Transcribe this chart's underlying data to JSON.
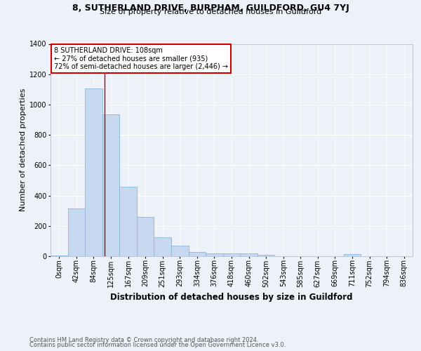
{
  "title": "8, SUTHERLAND DRIVE, BURPHAM, GUILDFORD, GU4 7YJ",
  "subtitle": "Size of property relative to detached houses in Guildford",
  "xlabel": "Distribution of detached houses by size in Guildford",
  "ylabel": "Number of detached properties",
  "footnote1": "Contains HM Land Registry data © Crown copyright and database right 2024.",
  "footnote2": "Contains public sector information licensed under the Open Government Licence v3.0.",
  "bar_labels": [
    "0sqm",
    "42sqm",
    "84sqm",
    "125sqm",
    "167sqm",
    "209sqm",
    "251sqm",
    "293sqm",
    "334sqm",
    "376sqm",
    "418sqm",
    "460sqm",
    "502sqm",
    "543sqm",
    "585sqm",
    "627sqm",
    "669sqm",
    "711sqm",
    "752sqm",
    "794sqm",
    "836sqm"
  ],
  "bar_values": [
    5,
    315,
    1105,
    935,
    460,
    260,
    125,
    70,
    30,
    20,
    20,
    20,
    10,
    0,
    0,
    0,
    0,
    15,
    0,
    0,
    0
  ],
  "bar_color": "#c6d9f0",
  "bar_edgecolor": "#8ab4d8",
  "ylim": [
    0,
    1400
  ],
  "yticks": [
    0,
    200,
    400,
    600,
    800,
    1000,
    1200,
    1400
  ],
  "property_line_x": 2.63,
  "annotation_text": "8 SUTHERLAND DRIVE: 108sqm\n← 27% of detached houses are smaller (935)\n72% of semi-detached houses are larger (2,446) →",
  "annotation_box_color": "#ffffff",
  "annotation_box_edgecolor": "#cc0000",
  "vline_color": "#aa0000",
  "background_color": "#edf2fa",
  "grid_color": "#ffffff",
  "title_fontsize": 9,
  "subtitle_fontsize": 8,
  "ylabel_fontsize": 8,
  "xlabel_fontsize": 8.5,
  "tick_fontsize": 7,
  "annot_fontsize": 7,
  "footnote_fontsize": 6
}
